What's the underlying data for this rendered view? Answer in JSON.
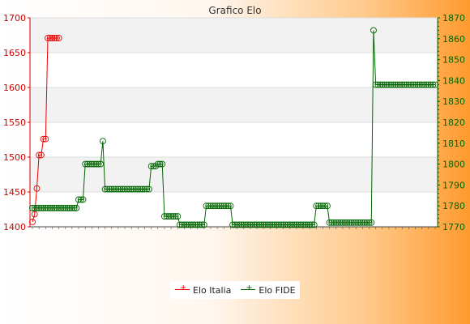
{
  "chart_data": {
    "type": "line",
    "title": "Grafico Elo",
    "xlabel": "",
    "y_left": {
      "ylim": [
        1400,
        1700
      ],
      "ticks": [
        1400,
        1450,
        1500,
        1550,
        1600,
        1650,
        1700
      ],
      "color": "#cc0000"
    },
    "y_right": {
      "ylim": [
        1770,
        1870
      ],
      "ticks": [
        1770,
        1780,
        1790,
        1800,
        1810,
        1820,
        1830,
        1840,
        1850,
        1860,
        1870
      ],
      "color": "#006600"
    },
    "grid": true,
    "legend": "bottom-center",
    "series": [
      {
        "name": "Elo Italia",
        "axis": "left",
        "color": "#ee0000",
        "values": [
          1407,
          1418,
          1455,
          1503,
          1503,
          1526,
          1526,
          1671,
          1671,
          1671,
          1671,
          1671,
          1671
        ]
      },
      {
        "name": "Elo FIDE",
        "axis": "right",
        "color": "#006600",
        "values": [
          1779,
          1779,
          1779,
          1779,
          1779,
          1779,
          1779,
          1779,
          1779,
          1779,
          1779,
          1779,
          1779,
          1779,
          1779,
          1779,
          1779,
          1779,
          1779,
          1779,
          1779,
          1783,
          1783,
          1783,
          1800,
          1800,
          1800,
          1800,
          1800,
          1800,
          1800,
          1800,
          1811,
          1788,
          1788,
          1788,
          1788,
          1788,
          1788,
          1788,
          1788,
          1788,
          1788,
          1788,
          1788,
          1788,
          1788,
          1788,
          1788,
          1788,
          1788,
          1788,
          1788,
          1788,
          1799,
          1799,
          1799,
          1800,
          1800,
          1800,
          1775,
          1775,
          1775,
          1775,
          1775,
          1775,
          1775,
          1771,
          1771,
          1771,
          1771,
          1771,
          1771,
          1771,
          1771,
          1771,
          1771,
          1771,
          1771,
          1780,
          1780,
          1780,
          1780,
          1780,
          1780,
          1780,
          1780,
          1780,
          1780,
          1780,
          1780,
          1771,
          1771,
          1771,
          1771,
          1771,
          1771,
          1771,
          1771,
          1771,
          1771,
          1771,
          1771,
          1771,
          1771,
          1771,
          1771,
          1771,
          1771,
          1771,
          1771,
          1771,
          1771,
          1771,
          1771,
          1771,
          1771,
          1771,
          1771,
          1771,
          1771,
          1771,
          1771,
          1771,
          1771,
          1771,
          1771,
          1771,
          1771,
          1780,
          1780,
          1780,
          1780,
          1780,
          1780,
          1772,
          1772,
          1772,
          1772,
          1772,
          1772,
          1772,
          1772,
          1772,
          1772,
          1772,
          1772,
          1772,
          1772,
          1772,
          1772,
          1772,
          1772,
          1772,
          1772,
          1864,
          1838,
          1838,
          1838,
          1838,
          1838,
          1838,
          1838,
          1838,
          1838,
          1838,
          1838,
          1838,
          1838,
          1838,
          1838,
          1838,
          1838,
          1838,
          1838,
          1838,
          1838,
          1838,
          1838,
          1838,
          1838,
          1838,
          1838,
          1838
        ]
      }
    ]
  }
}
